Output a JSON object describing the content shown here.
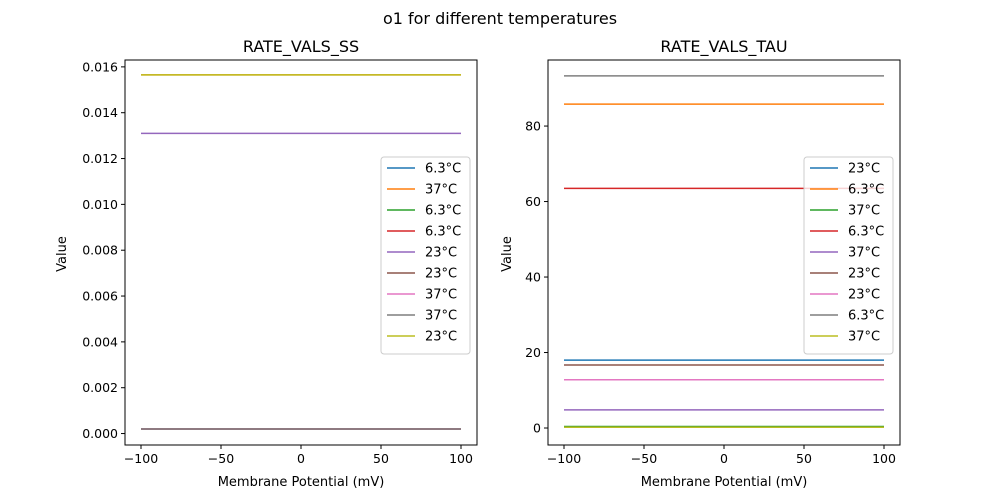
{
  "figure": {
    "suptitle": "o1 for different temperatures"
  },
  "chart_data": [
    {
      "type": "line",
      "title": "RATE_VALS_SS",
      "xlabel": "Membrane Potential (mV)",
      "ylabel": "Value",
      "xlim": [
        -110,
        110
      ],
      "ylim": [
        -0.0005,
        0.0163
      ],
      "xticks": [
        -100,
        -50,
        0,
        50,
        100
      ],
      "xtick_labels": [
        "−100",
        "−50",
        "0",
        "50",
        "100"
      ],
      "yticks": [
        0.0,
        0.002,
        0.004,
        0.006,
        0.008,
        0.01,
        0.012,
        0.014,
        0.016
      ],
      "ytick_labels": [
        "0.000",
        "0.002",
        "0.004",
        "0.006",
        "0.008",
        "0.010",
        "0.012",
        "0.014",
        "0.016"
      ],
      "x": [
        -100,
        100
      ],
      "legend_position": "center-right",
      "series": [
        {
          "name": "6.3°C",
          "color": "#1f77b4",
          "values": [
            0.0002,
            0.0002
          ]
        },
        {
          "name": "37°C",
          "color": "#ff7f0e",
          "values": [
            0.01565,
            0.01565
          ]
        },
        {
          "name": "6.3°C",
          "color": "#2ca02c",
          "values": [
            0.0002,
            0.0002
          ]
        },
        {
          "name": "6.3°C",
          "color": "#d62728",
          "values": [
            0.0002,
            0.0002
          ]
        },
        {
          "name": "23°C",
          "color": "#9467bd",
          "values": [
            0.0131,
            0.0131
          ]
        },
        {
          "name": "23°C",
          "color": "#8c564b",
          "values": [
            0.0002,
            0.0002
          ]
        },
        {
          "name": "37°C",
          "color": "#e377c2",
          "values": [
            0.0002,
            0.0002
          ]
        },
        {
          "name": "37°C",
          "color": "#7f7f7f",
          "values": [
            0.0002,
            0.0002
          ]
        },
        {
          "name": "23°C",
          "color": "#bcbd22",
          "values": [
            0.01565,
            0.01565
          ]
        }
      ]
    },
    {
      "type": "line",
      "title": "RATE_VALS_TAU",
      "xlabel": "Membrane Potential (mV)",
      "ylabel": "Value",
      "xlim": [
        -110,
        110
      ],
      "ylim": [
        -4.5,
        97.5
      ],
      "xticks": [
        -100,
        -50,
        0,
        50,
        100
      ],
      "xtick_labels": [
        "−100",
        "−50",
        "0",
        "50",
        "100"
      ],
      "yticks": [
        0,
        20,
        40,
        60,
        80
      ],
      "ytick_labels": [
        "0",
        "20",
        "40",
        "60",
        "80"
      ],
      "x": [
        -100,
        100
      ],
      "legend_position": "center-right",
      "series": [
        {
          "name": "23°C",
          "color": "#1f77b4",
          "values": [
            18.0,
            18.0
          ]
        },
        {
          "name": "6.3°C",
          "color": "#ff7f0e",
          "values": [
            85.8,
            85.8
          ]
        },
        {
          "name": "37°C",
          "color": "#2ca02c",
          "values": [
            0.4,
            0.4
          ]
        },
        {
          "name": "6.3°C",
          "color": "#d62728",
          "values": [
            63.5,
            63.5
          ]
        },
        {
          "name": "37°C",
          "color": "#9467bd",
          "values": [
            4.8,
            4.8
          ]
        },
        {
          "name": "23°C",
          "color": "#8c564b",
          "values": [
            16.7,
            16.7
          ]
        },
        {
          "name": "23°C",
          "color": "#e377c2",
          "values": [
            12.8,
            12.8
          ]
        },
        {
          "name": "6.3°C",
          "color": "#7f7f7f",
          "values": [
            93.3,
            93.3
          ]
        },
        {
          "name": "37°C",
          "color": "#bcbd22",
          "values": [
            0.2,
            0.2
          ]
        }
      ]
    }
  ]
}
